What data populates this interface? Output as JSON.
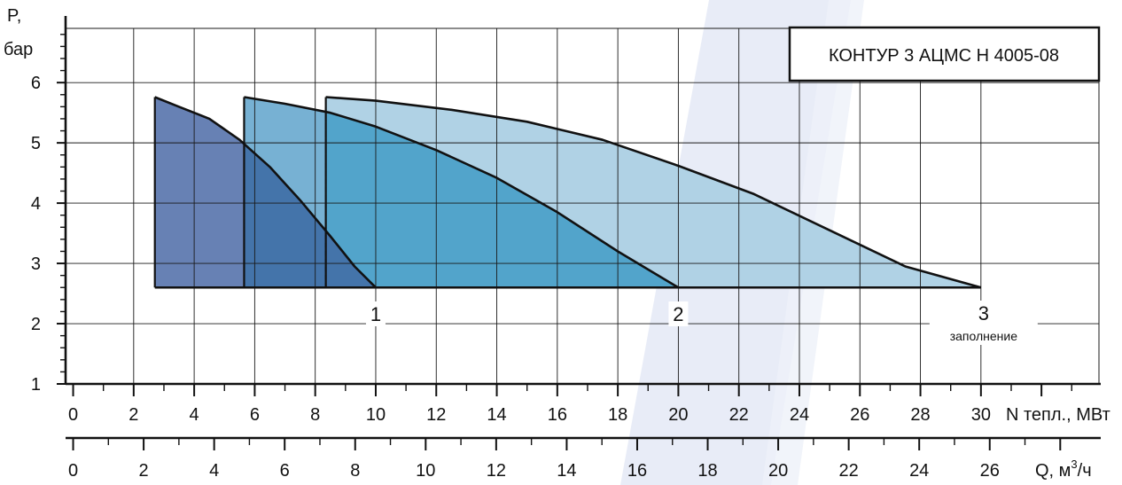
{
  "chart_data": {
    "type": "area",
    "title": "КОНТУР 3 АЦМС Н 4005-08",
    "y_axis": {
      "label_line1": "P,",
      "label_line2": "бар",
      "range": [
        1,
        6.9
      ],
      "ticks": [
        1,
        2,
        3,
        4,
        5,
        6
      ]
    },
    "x_axis_primary": {
      "label": "N тепл., МВт",
      "range": [
        -0.25,
        33.9
      ],
      "ticks": [
        0,
        2,
        4,
        6,
        8,
        10,
        12,
        14,
        16,
        18,
        20,
        22,
        24,
        26,
        28,
        30
      ],
      "tick_labels": [
        "0",
        "2",
        "4",
        "6",
        "8",
        "10",
        "12",
        "14",
        "16",
        "18",
        "20",
        "22",
        "24",
        "26",
        "28",
        "30"
      ]
    },
    "x_axis_secondary": {
      "label_prefix": "Q, м",
      "label_sup": "3",
      "label_suffix": "/ч",
      "ticks": [
        0,
        2,
        4,
        6,
        8,
        10,
        12,
        14,
        16,
        18,
        20,
        22,
        24,
        26
      ],
      "tick_labels": [
        "0",
        "2",
        "4",
        "6",
        "8",
        "10",
        "12",
        "14",
        "16",
        "18",
        "20",
        "22",
        "24",
        "26"
      ],
      "n_per_q": 1.165
    },
    "grid": true,
    "baseline": 2.6,
    "series": [
      {
        "name": "1",
        "color": "#6781b4",
        "overlap_color": "#4474aa",
        "x_min": 2.7,
        "points": [
          [
            2.7,
            5.76
          ],
          [
            3.5,
            5.6
          ],
          [
            4.5,
            5.4
          ],
          [
            5.5,
            5.05
          ],
          [
            6.5,
            4.6
          ],
          [
            7.5,
            4.05
          ],
          [
            8.5,
            3.45
          ],
          [
            9.3,
            2.95
          ],
          [
            10.0,
            2.6
          ]
        ]
      },
      {
        "name": "2",
        "color": "#77b1d3",
        "overlap_color": "#52a4cb",
        "x_min": 5.65,
        "points": [
          [
            5.65,
            5.76
          ],
          [
            7,
            5.65
          ],
          [
            8.5,
            5.5
          ],
          [
            10,
            5.27
          ],
          [
            12,
            4.88
          ],
          [
            14,
            4.42
          ],
          [
            16,
            3.85
          ],
          [
            18,
            3.2
          ],
          [
            20,
            2.6
          ]
        ]
      },
      {
        "name": "3",
        "sublabel": "заполнение",
        "color": "#b0d2e5",
        "overlap_color": "#b0d2e5",
        "x_min": 8.35,
        "points": [
          [
            8.35,
            5.76
          ],
          [
            10,
            5.7
          ],
          [
            12.5,
            5.55
          ],
          [
            15,
            5.35
          ],
          [
            17.5,
            5.05
          ],
          [
            20,
            4.62
          ],
          [
            22.5,
            4.15
          ],
          [
            25,
            3.55
          ],
          [
            27.5,
            2.95
          ],
          [
            30,
            2.6
          ]
        ]
      }
    ],
    "series_label_positions": [
      10,
      20,
      30
    ],
    "dashed_boundaries": [
      5.65,
      8.35
    ],
    "background_colors": [
      "#d5ddf1",
      "#eef1f9"
    ]
  }
}
